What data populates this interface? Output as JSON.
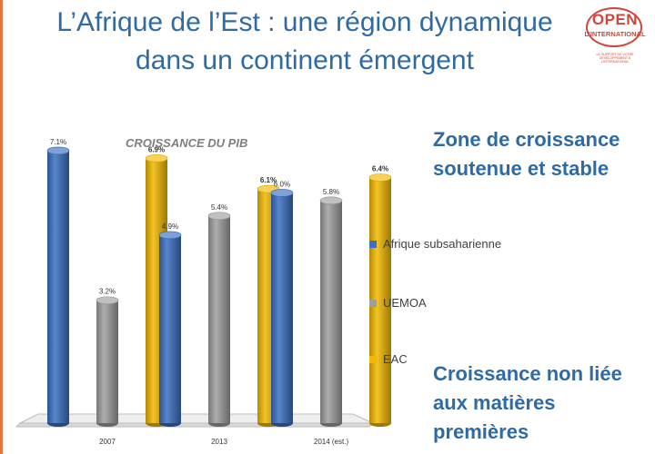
{
  "slide": {
    "title": "L’Afrique de l’Est : une région dynamique dans un continent émergent",
    "side_text_top": "Zone de croissance soutenue et stable",
    "side_text_bottom": "Croissance non liée aux matières premières",
    "accent_color": "#e8743b",
    "title_color": "#2f6aa3"
  },
  "logo": {
    "word": "OPEN",
    "superscript": "de",
    "subtitle": "L'INTERNATIONAL",
    "tagline": "LE SUPPORT DE VOTRE DEVELOPPEMENT A L'INTERNATIONAL"
  },
  "chart_data": {
    "type": "bar",
    "title": "CROISSANCE DU PIB",
    "categories": [
      "2007",
      "2013",
      "2014 (est.)"
    ],
    "series": [
      {
        "name": "Afrique subsaharienne",
        "color": "#3a6fc2",
        "values": [
          7.1,
          4.9,
          6.0
        ],
        "labels": [
          "7.1%",
          "4.9%",
          "6.0%"
        ]
      },
      {
        "name": "UEMOA",
        "color": "#9e9e9e",
        "values": [
          3.2,
          5.4,
          5.8
        ],
        "labels": [
          "3.2%",
          "5.4%",
          "5.8%"
        ]
      },
      {
        "name": "EAC",
        "color": "#f2b800",
        "values": [
          6.9,
          6.1,
          6.4
        ],
        "labels": [
          "6.9%",
          "6.1%",
          "6.4%"
        ]
      }
    ],
    "ylim": [
      0,
      7.5
    ],
    "xlabel": "",
    "ylabel": "",
    "legend_position": "right",
    "grid": false,
    "style": "3d-cylinder"
  }
}
